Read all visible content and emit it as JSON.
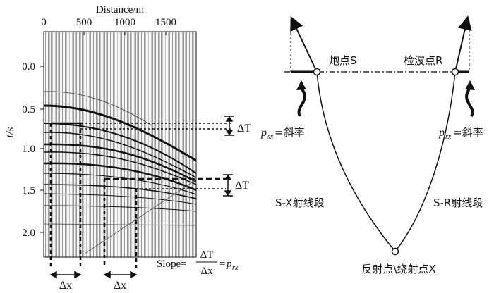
{
  "left": {
    "x_axis_title": "Distance/m",
    "x_ticks": [
      "0",
      "500",
      "1000",
      "1500"
    ],
    "y_axis_title": "t/s",
    "y_ticks": [
      "0.0",
      "0.5",
      "1.0",
      "1.5",
      "2.0"
    ],
    "delta_t": "ΔT",
    "delta_x": "Δx",
    "slope_prefix": "Slope=",
    "slope_eq": "=",
    "slope_symbol": "p",
    "slope_subscript": "rx"
  },
  "right": {
    "shot_label": "炮点S",
    "receiver_label": "检波点R",
    "psx_symbol": "p",
    "psx_subscript": "sx",
    "psx_text": "=斜率",
    "prx_symbol": "p",
    "prx_subscript": "rx",
    "prx_text": "=斜率",
    "sx_segment": "S-X射线段",
    "sr_segment": "S-R射线段",
    "reflection_point": "反射点\\绕射点X"
  }
}
